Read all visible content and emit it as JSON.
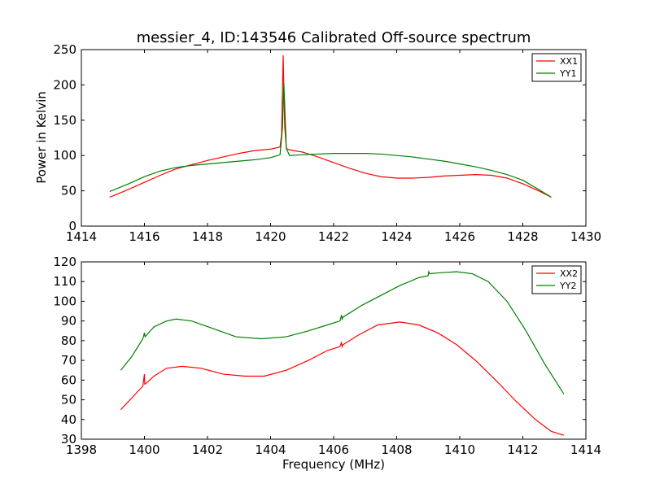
{
  "figure": {
    "title": "messier_4, ID:143546 Calibrated Off-source spectrum",
    "xlabel": "Frequency (MHz)",
    "ylabel": "Power in Kelvin"
  },
  "chart_data": [
    {
      "type": "line",
      "title": "messier_4, ID:143546 Calibrated Off-source spectrum",
      "xlabel": "",
      "ylabel": "Power in Kelvin",
      "xlim": [
        1414,
        1430
      ],
      "ylim": [
        0,
        250
      ],
      "xticks": [
        1414,
        1416,
        1418,
        1420,
        1422,
        1424,
        1426,
        1428,
        1430
      ],
      "yticks": [
        0,
        50,
        100,
        150,
        200,
        250
      ],
      "grid": false,
      "legend_position": "top-right",
      "series": [
        {
          "name": "XX1",
          "color": "#ff0000",
          "x": [
            1414.9,
            1415.5,
            1416.0,
            1416.5,
            1417.0,
            1417.5,
            1418.0,
            1418.5,
            1419.0,
            1419.5,
            1420.0,
            1420.3,
            1420.35,
            1420.4,
            1420.42,
            1420.45,
            1420.5,
            1420.6,
            1421.0,
            1421.5,
            1422.0,
            1422.5,
            1423.0,
            1423.5,
            1424.0,
            1424.5,
            1425.0,
            1425.5,
            1426.0,
            1426.5,
            1427.0,
            1427.5,
            1428.0,
            1428.5,
            1428.9
          ],
          "y": [
            41,
            52,
            62,
            72,
            81,
            87,
            93,
            98,
            103,
            107,
            109,
            112,
            130,
            242,
            200,
            140,
            110,
            108,
            105,
            98,
            90,
            82,
            75,
            70,
            68,
            68,
            69,
            71,
            72,
            73,
            72,
            68,
            60,
            50,
            41
          ]
        },
        {
          "name": "YY1",
          "color": "#008000",
          "x": [
            1414.9,
            1415.5,
            1416.0,
            1416.5,
            1417.0,
            1417.5,
            1418.0,
            1418.5,
            1419.0,
            1419.5,
            1420.0,
            1420.3,
            1420.38,
            1420.42,
            1420.45,
            1420.5,
            1420.6,
            1421.0,
            1421.5,
            1422.0,
            1422.5,
            1423.0,
            1423.5,
            1424.0,
            1424.5,
            1425.0,
            1425.5,
            1426.0,
            1426.5,
            1427.0,
            1427.5,
            1428.0,
            1428.5,
            1428.9
          ],
          "y": [
            49,
            60,
            70,
            78,
            83,
            86,
            88,
            90,
            92,
            94,
            97,
            101,
            140,
            203,
            170,
            110,
            100,
            101,
            102,
            103,
            103,
            103,
            102,
            100,
            98,
            95,
            92,
            88,
            84,
            79,
            73,
            65,
            52,
            41
          ]
        }
      ]
    },
    {
      "type": "line",
      "title": "",
      "xlabel": "Frequency (MHz)",
      "ylabel": "",
      "xlim": [
        1398,
        1414
      ],
      "ylim": [
        30,
        120
      ],
      "xticks": [
        1398,
        1400,
        1402,
        1404,
        1406,
        1408,
        1410,
        1412,
        1414
      ],
      "yticks": [
        30,
        40,
        50,
        60,
        70,
        80,
        90,
        100,
        110,
        120
      ],
      "grid": false,
      "legend_position": "top-right",
      "series": [
        {
          "name": "XX2",
          "color": "#ff0000",
          "x": [
            1399.25,
            1399.6,
            1399.95,
            1400.0,
            1400.01,
            1400.03,
            1400.3,
            1400.7,
            1401.2,
            1401.8,
            1402.5,
            1403.2,
            1403.8,
            1404.5,
            1405.2,
            1405.8,
            1406.2,
            1406.25,
            1406.27,
            1406.3,
            1406.8,
            1407.4,
            1408.1,
            1408.7,
            1409.3,
            1409.9,
            1410.5,
            1411.2,
            1411.8,
            1412.4,
            1412.9,
            1413.3
          ],
          "y": [
            45,
            51,
            57,
            63,
            58,
            58,
            62,
            66,
            67,
            66,
            63,
            62,
            62,
            65,
            70,
            75,
            77,
            79,
            77,
            78,
            83,
            88,
            89.5,
            88,
            84,
            78,
            70,
            59,
            49,
            40,
            34,
            32
          ]
        },
        {
          "name": "YY2",
          "color": "#008000",
          "x": [
            1399.25,
            1399.6,
            1399.95,
            1400.0,
            1400.02,
            1400.3,
            1400.7,
            1401.0,
            1401.5,
            1402.2,
            1402.9,
            1403.7,
            1404.5,
            1405.2,
            1405.8,
            1406.2,
            1406.25,
            1406.27,
            1406.3,
            1406.9,
            1407.5,
            1408.1,
            1408.7,
            1409.0,
            1409.02,
            1409.05,
            1409.4,
            1409.9,
            1410.4,
            1410.9,
            1411.5,
            1412.1,
            1412.7,
            1413.3
          ],
          "y": [
            65,
            72,
            81,
            84,
            82,
            87,
            90,
            91,
            90,
            86,
            82,
            81,
            82,
            85,
            88,
            90,
            93,
            91,
            92,
            98,
            103,
            108,
            112,
            113,
            115,
            114,
            114.5,
            115,
            114,
            110,
            100,
            85,
            68,
            53
          ]
        }
      ]
    }
  ]
}
